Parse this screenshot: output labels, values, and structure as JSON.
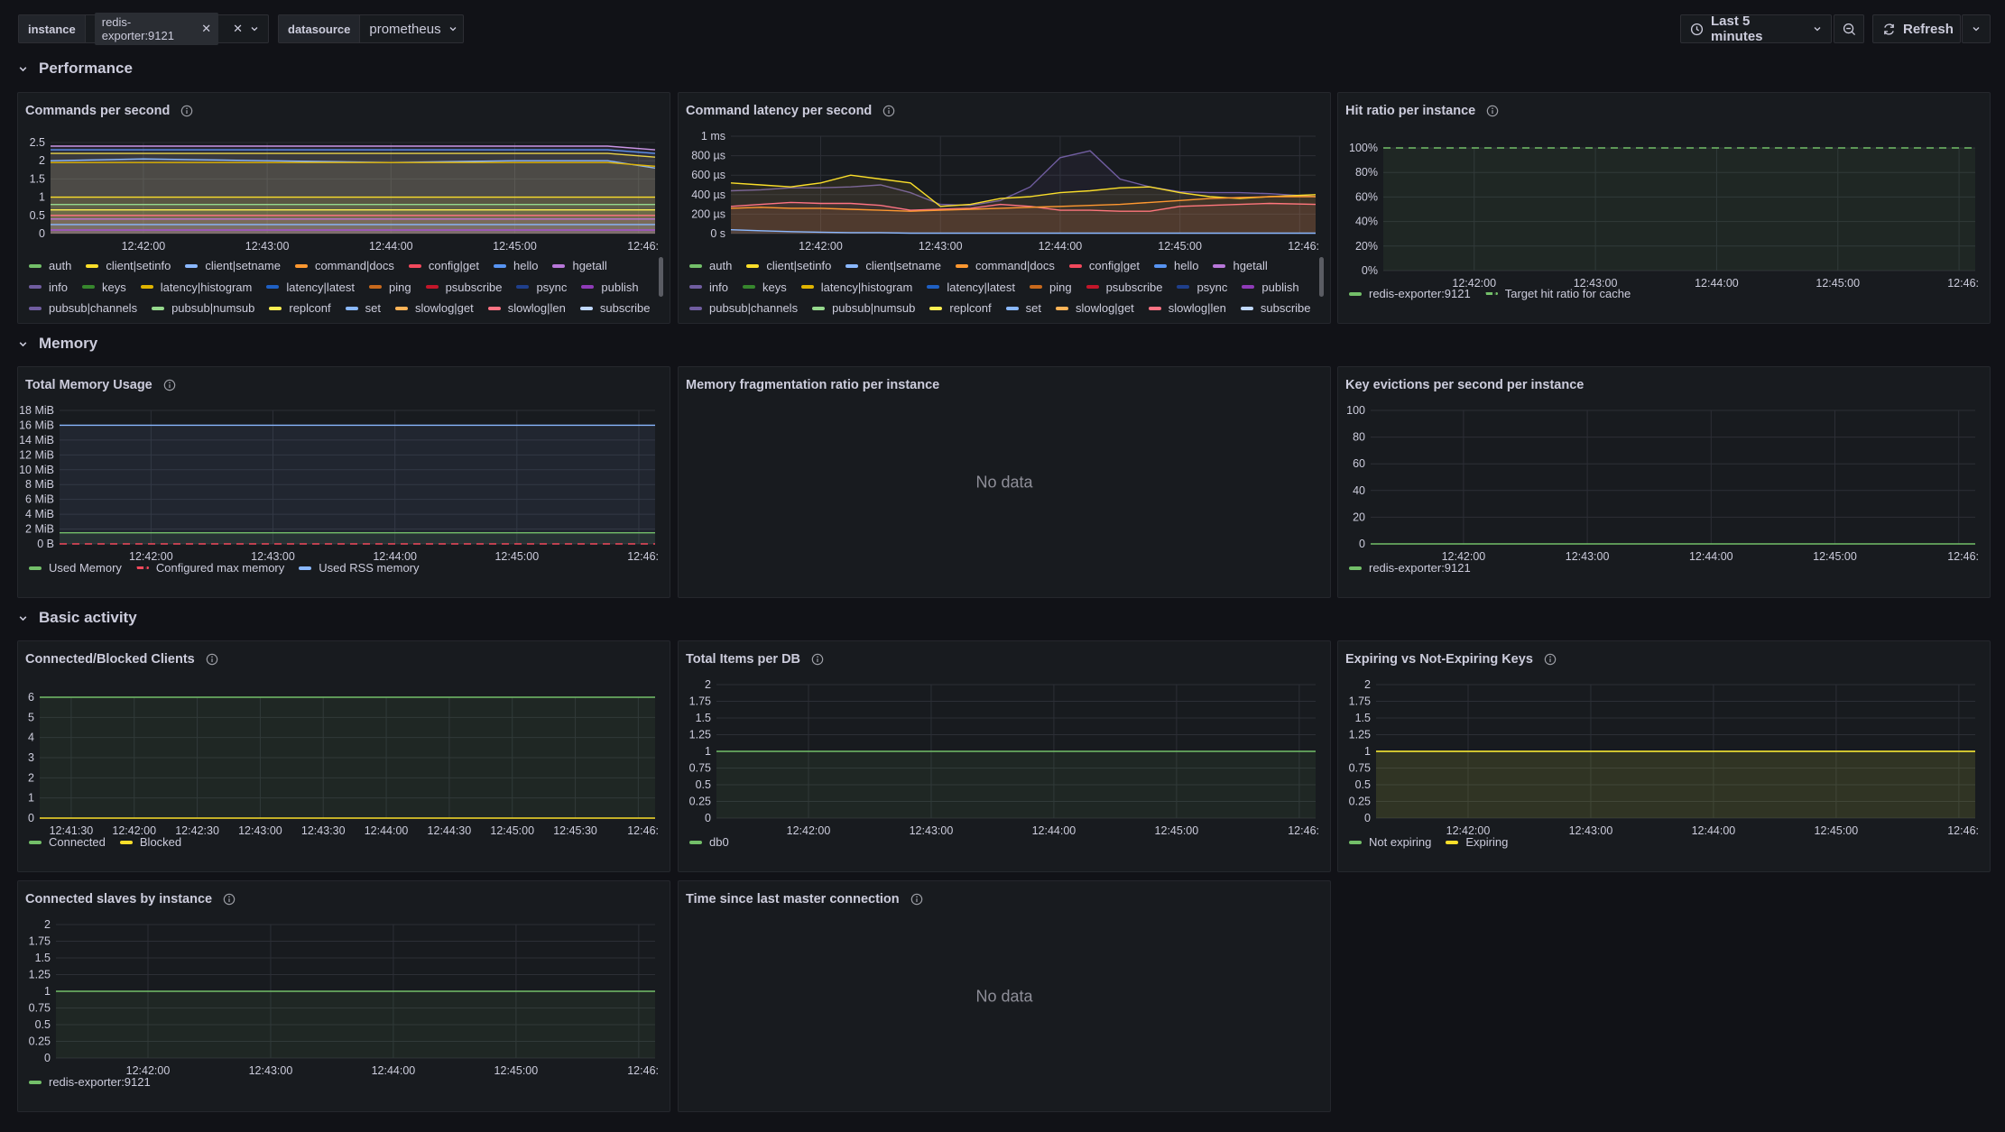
{
  "toolbar": {
    "instance_label": "instance",
    "instance_value": "redis-exporter:9121",
    "datasource_label": "datasource",
    "datasource_value": "prometheus",
    "time_range": "Last 5 minutes",
    "refresh_label": "Refresh"
  },
  "rows": {
    "performance": "Performance",
    "memory": "Memory",
    "basic": "Basic activity"
  },
  "colors": {
    "green": "#73bf69",
    "yellow": "#fade2a",
    "blue": "#8ab8ff",
    "orange": "#ff9830",
    "red": "#f2495c",
    "purple": "#a352cc",
    "lightpurple": "#ca95e5",
    "darkblue": "#5794f2",
    "darkgreen": "#37872d",
    "darkred": "#c4162a",
    "darkpurple": "#8f3bb8",
    "lightgreen": "#96d98d",
    "lightyellow": "#ffee52",
    "lightblue": "#8ab8ff",
    "peach": "#ffb357",
    "pink": "#ff7383"
  },
  "panels": {
    "cmds": {
      "title": "Commands per second",
      "x_ticks": [
        "12:42:00",
        "12:43:00",
        "12:44:00",
        "12:45:00",
        "12:46:"
      ],
      "y_ticks": [
        "0",
        "0.5",
        "1",
        "1.5",
        "2",
        "2.5"
      ],
      "legend": [
        {
          "name": "auth",
          "color": "#73bf69"
        },
        {
          "name": "client|setinfo",
          "color": "#fade2a"
        },
        {
          "name": "client|setname",
          "color": "#8ab8ff"
        },
        {
          "name": "command|docs",
          "color": "#ff9830"
        },
        {
          "name": "config|get",
          "color": "#f2495c"
        },
        {
          "name": "hello",
          "color": "#5794f2"
        },
        {
          "name": "hgetall",
          "color": "#b877d9"
        },
        {
          "name": "info",
          "color": "#705da0"
        },
        {
          "name": "keys",
          "color": "#37872d"
        },
        {
          "name": "latency|histogram",
          "color": "#e0b400"
        },
        {
          "name": "latency|latest",
          "color": "#1f60c4"
        },
        {
          "name": "ping",
          "color": "#c8691c"
        },
        {
          "name": "psubscribe",
          "color": "#c4162a"
        },
        {
          "name": "psync",
          "color": "#1f3f8c"
        },
        {
          "name": "publish",
          "color": "#8f3bb8"
        },
        {
          "name": "pubsub|channels",
          "color": "#705da0"
        },
        {
          "name": "pubsub|numsub",
          "color": "#96d98d"
        },
        {
          "name": "replconf",
          "color": "#ffee52"
        },
        {
          "name": "set",
          "color": "#8ab8ff"
        },
        {
          "name": "slowlog|get",
          "color": "#ffb357"
        },
        {
          "name": "slowlog|len",
          "color": "#ff7383"
        },
        {
          "name": "subscribe",
          "color": "#c0d8ff"
        }
      ]
    },
    "latency": {
      "title": "Command latency per second",
      "x_ticks": [
        "12:42:00",
        "12:43:00",
        "12:44:00",
        "12:45:00",
        "12:46:"
      ],
      "y_ticks": [
        "0 s",
        "200 µs",
        "400 µs",
        "600 µs",
        "800 µs",
        "1 ms"
      ]
    },
    "hitratio": {
      "title": "Hit ratio per instance",
      "x_ticks": [
        "12:42:00",
        "12:43:00",
        "12:44:00",
        "12:45:00",
        "12:46:"
      ],
      "y_ticks": [
        "0%",
        "20%",
        "40%",
        "60%",
        "80%",
        "100%"
      ],
      "legend": [
        {
          "name": "redis-exporter:9121",
          "color": "#73bf69"
        },
        {
          "name": "Target hit ratio for cache",
          "color": "#73bf69",
          "dashed": true
        }
      ]
    },
    "memory": {
      "title": "Total Memory Usage",
      "x_ticks": [
        "12:42:00",
        "12:43:00",
        "12:44:00",
        "12:45:00",
        "12:46:"
      ],
      "y_ticks": [
        "0 B",
        "2 MiB",
        "4 MiB",
        "6 MiB",
        "8 MiB",
        "10 MiB",
        "12 MiB",
        "14 MiB",
        "16 MiB",
        "18 MiB"
      ],
      "legend": [
        {
          "name": "Used Memory",
          "color": "#73bf69"
        },
        {
          "name": "Configured max memory",
          "color": "#f2495c",
          "dashed": true
        },
        {
          "name": "Used RSS memory",
          "color": "#8ab8ff"
        }
      ]
    },
    "frag": {
      "title": "Memory fragmentation ratio per instance",
      "nodata": "No data"
    },
    "evictions": {
      "title": "Key evictions per second per instance",
      "x_ticks": [
        "12:42:00",
        "12:43:00",
        "12:44:00",
        "12:45:00",
        "12:46:"
      ],
      "y_ticks": [
        "0",
        "20",
        "40",
        "60",
        "80",
        "100"
      ],
      "legend": [
        {
          "name": "redis-exporter:9121",
          "color": "#73bf69"
        }
      ]
    },
    "clients": {
      "title": "Connected/Blocked Clients",
      "x_ticks": [
        "12:41:30",
        "12:42:00",
        "12:42:30",
        "12:43:00",
        "12:43:30",
        "12:44:00",
        "12:44:30",
        "12:45:00",
        "12:45:30",
        "12:46:"
      ],
      "y_ticks": [
        "0",
        "1",
        "2",
        "3",
        "4",
        "5",
        "6"
      ],
      "legend": [
        {
          "name": "Connected",
          "color": "#73bf69"
        },
        {
          "name": "Blocked",
          "color": "#fade2a"
        }
      ]
    },
    "items": {
      "title": "Total Items per DB",
      "x_ticks": [
        "12:42:00",
        "12:43:00",
        "12:44:00",
        "12:45:00",
        "12:46:"
      ],
      "y_ticks": [
        "0",
        "0.25",
        "0.5",
        "0.75",
        "1",
        "1.25",
        "1.5",
        "1.75",
        "2"
      ],
      "legend": [
        {
          "name": "db0",
          "color": "#73bf69"
        }
      ]
    },
    "expiring": {
      "title": "Expiring vs Not-Expiring Keys",
      "x_ticks": [
        "12:42:00",
        "12:43:00",
        "12:44:00",
        "12:45:00",
        "12:46:"
      ],
      "y_ticks": [
        "0",
        "0.25",
        "0.5",
        "0.75",
        "1",
        "1.25",
        "1.5",
        "1.75",
        "2"
      ],
      "legend": [
        {
          "name": "Not expiring",
          "color": "#73bf69"
        },
        {
          "name": "Expiring",
          "color": "#fade2a"
        }
      ]
    },
    "slaves": {
      "title": "Connected slaves by instance",
      "x_ticks": [
        "12:42:00",
        "12:43:00",
        "12:44:00",
        "12:45:00",
        "12:46:"
      ],
      "y_ticks": [
        "0",
        "0.25",
        "0.5",
        "0.75",
        "1",
        "1.25",
        "1.5",
        "1.75",
        "2"
      ],
      "legend": [
        {
          "name": "redis-exporter:9121",
          "color": "#73bf69"
        }
      ]
    },
    "mastertime": {
      "title": "Time since last master connection",
      "nodata": "No data"
    }
  },
  "chart_data": [
    {
      "type": "line",
      "title": "Commands per second",
      "ylim": [
        0,
        2.5
      ],
      "x": [
        "12:41:15",
        "12:42:00",
        "12:43:00",
        "12:44:00",
        "12:45:00",
        "12:45:45",
        "12:46:00"
      ],
      "series": [
        {
          "name": "client|setinfo",
          "color": "#fade2a",
          "values": [
            2.2,
            2.2,
            2.2,
            2.2,
            2.2,
            2.2,
            2.1
          ]
        },
        {
          "name": "hello",
          "color": "#5794f2",
          "values": [
            2.3,
            2.3,
            2.3,
            2.3,
            2.3,
            2.3,
            2.2
          ]
        },
        {
          "name": "pubsub|channels",
          "color": "#ca95e5",
          "values": [
            2.4,
            2.4,
            2.4,
            2.4,
            2.4,
            2.4,
            2.3
          ]
        },
        {
          "name": "client|setname",
          "color": "#8ab8ff",
          "values": [
            2.0,
            2.05,
            2.0,
            1.95,
            2.0,
            2.0,
            1.8
          ]
        },
        {
          "name": "latency|histogram",
          "color": "#e0b400",
          "values": [
            1.95,
            1.95,
            1.95,
            1.95,
            1.95,
            1.95,
            1.85
          ]
        },
        {
          "name": "info",
          "color": "#fade2a",
          "values": [
            1.0,
            1.0,
            1.0,
            1.0,
            1.0,
            1.0,
            1.0
          ]
        },
        {
          "name": "keys",
          "color": "#96d98d",
          "values": [
            0.8,
            0.8,
            0.8,
            0.8,
            0.8,
            0.8,
            0.8
          ]
        },
        {
          "name": "ping",
          "color": "#ffee52",
          "values": [
            0.65,
            0.65,
            0.65,
            0.65,
            0.65,
            0.65,
            0.65
          ]
        },
        {
          "name": "psubscribe",
          "color": "#ff7383",
          "values": [
            0.5,
            0.5,
            0.5,
            0.5,
            0.5,
            0.5,
            0.5
          ]
        },
        {
          "name": "publish",
          "color": "#b877d9",
          "values": [
            0.4,
            0.4,
            0.4,
            0.4,
            0.4,
            0.4,
            0.4
          ]
        },
        {
          "name": "set",
          "color": "#8ab8ff",
          "values": [
            0.25,
            0.25,
            0.25,
            0.25,
            0.25,
            0.25,
            0.25
          ]
        },
        {
          "name": "slowlog|len",
          "color": "#a352cc",
          "values": [
            0.1,
            0.1,
            0.1,
            0.1,
            0.1,
            0.1,
            0.1
          ]
        }
      ]
    },
    {
      "type": "line",
      "title": "Command latency per second",
      "ylim": [
        0,
        1000
      ],
      "yunit": "µs",
      "x": [
        "12:41:15",
        "12:41:30",
        "12:41:45",
        "12:42:00",
        "12:42:15",
        "12:42:30",
        "12:42:45",
        "12:43:00",
        "12:43:15",
        "12:43:30",
        "12:43:45",
        "12:44:00",
        "12:44:15",
        "12:44:30",
        "12:44:45",
        "12:45:00",
        "12:45:15",
        "12:45:30",
        "12:45:45",
        "12:46:00"
      ],
      "series": [
        {
          "name": "info",
          "color": "#705da0",
          "values": [
            440,
            450,
            470,
            470,
            480,
            500,
            420,
            300,
            290,
            340,
            480,
            780,
            850,
            560,
            480,
            430,
            420,
            420,
            410,
            380
          ]
        },
        {
          "name": "client|setinfo",
          "color": "#fade2a",
          "values": [
            520,
            500,
            480,
            520,
            600,
            560,
            520,
            280,
            300,
            360,
            380,
            420,
            440,
            470,
            480,
            420,
            380,
            360,
            380,
            400
          ]
        },
        {
          "name": "ping",
          "color": "#ff7383",
          "values": [
            280,
            300,
            320,
            310,
            310,
            290,
            240,
            250,
            260,
            300,
            280,
            240,
            240,
            230,
            230,
            280,
            290,
            300,
            310,
            300
          ]
        },
        {
          "name": "command|docs",
          "color": "#ff9830",
          "values": [
            260,
            270,
            260,
            260,
            250,
            240,
            230,
            240,
            250,
            260,
            270,
            280,
            290,
            300,
            320,
            340,
            360,
            370,
            380,
            380
          ]
        },
        {
          "name": "client|setname",
          "color": "#8ab8ff",
          "values": [
            40,
            30,
            20,
            15,
            10,
            10,
            5,
            5,
            5,
            5,
            5,
            5,
            5,
            5,
            5,
            5,
            5,
            5,
            5,
            5
          ]
        }
      ]
    },
    {
      "type": "line",
      "title": "Hit ratio per instance",
      "ylim": [
        0,
        1
      ],
      "x": [
        "12:41:15",
        "12:46:00"
      ],
      "series": [
        {
          "name": "Target hit ratio for cache",
          "color": "#73bf69",
          "values": [
            1,
            1
          ]
        }
      ]
    },
    {
      "type": "area",
      "title": "Total Memory Usage",
      "ylim": [
        0,
        18
      ],
      "yunit": "MiB",
      "x": [
        "12:41:15",
        "12:46:00"
      ],
      "series": [
        {
          "name": "Used RSS memory",
          "color": "#8ab8ff",
          "values": [
            16,
            16
          ]
        },
        {
          "name": "Used Memory",
          "color": "#73bf69",
          "values": [
            1.5,
            1.5
          ]
        },
        {
          "name": "Configured max memory",
          "color": "#f2495c",
          "values": [
            0,
            0
          ]
        }
      ]
    },
    {
      "type": "line",
      "title": "Key evictions per second per instance",
      "ylim": [
        0,
        100
      ],
      "x": [
        "12:41:15",
        "12:46:00"
      ],
      "series": [
        {
          "name": "redis-exporter:9121",
          "color": "#73bf69",
          "values": [
            0,
            0
          ]
        }
      ]
    },
    {
      "type": "area",
      "title": "Connected/Blocked Clients",
      "ylim": [
        0,
        6
      ],
      "x": [
        "12:41:15",
        "12:46:00"
      ],
      "series": [
        {
          "name": "Connected",
          "color": "#73bf69",
          "values": [
            6,
            6
          ]
        },
        {
          "name": "Blocked",
          "color": "#fade2a",
          "values": [
            0,
            0
          ]
        }
      ]
    },
    {
      "type": "area",
      "title": "Total Items per DB",
      "ylim": [
        0,
        2
      ],
      "x": [
        "12:41:15",
        "12:46:00"
      ],
      "series": [
        {
          "name": "db0",
          "color": "#73bf69",
          "values": [
            1,
            1
          ]
        }
      ]
    },
    {
      "type": "area",
      "title": "Expiring vs Not-Expiring Keys",
      "ylim": [
        0,
        2
      ],
      "x": [
        "12:41:15",
        "12:46:00"
      ],
      "series": [
        {
          "name": "Not expiring",
          "color": "#73bf69",
          "values": [
            1,
            1
          ]
        },
        {
          "name": "Expiring",
          "color": "#fade2a",
          "values": [
            1,
            1
          ]
        }
      ]
    },
    {
      "type": "area",
      "title": "Connected slaves by instance",
      "ylim": [
        0,
        2
      ],
      "x": [
        "12:41:15",
        "12:46:00"
      ],
      "series": [
        {
          "name": "redis-exporter:9121",
          "color": "#73bf69",
          "values": [
            1,
            1
          ]
        }
      ]
    }
  ]
}
